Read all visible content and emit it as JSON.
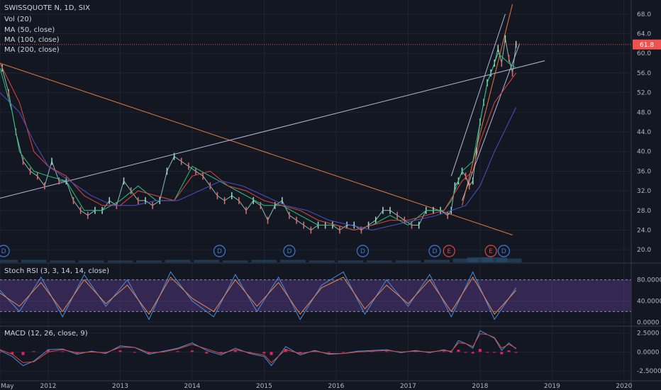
{
  "legend": {
    "title": "SWISSQUOTE N, 1D, SIX",
    "vol": "Vol (20)",
    "ma50": "MA (50, close)",
    "ma100": "MA (100, close)",
    "ma200": "MA (200, close)",
    "stoch": "Stoch RSI (3, 3, 14, 14, close)",
    "macd": "MACD (12, 26, close, 9)"
  },
  "colors": {
    "background": "#131722",
    "grid": "#1f2433",
    "candle_up": "#9fd8c7",
    "candle_down": "#e06d6d",
    "ma50": "#26c281",
    "ma100": "#e0463f",
    "ma200": "#4f4fc7",
    "trend_orange": "#e6783a",
    "trend_light": "#b0b8d8",
    "current_price": "#ef5350",
    "stoch_k": "#4a8fe0",
    "stoch_d": "#e9894a",
    "stoch_band": "#5d3f8f",
    "macd_line": "#4a8fe0",
    "signal_line": "#e0463f",
    "hist": "#e91e63"
  },
  "chart_data": [
    {
      "type": "line",
      "title": "SWISSQUOTE N, 1D, SIX",
      "ylim": [
        18,
        70
      ],
      "y_ticks": [
        "68.0",
        "64.0",
        "60.0",
        "56.0",
        "52.0",
        "48.0",
        "44.0",
        "40.0",
        "36.0",
        "32.0",
        "28.0",
        "24.0",
        "20.0"
      ],
      "x_tick_labels": [
        "May",
        "2012",
        "2013",
        "2014",
        "2015",
        "2016",
        "2017",
        "2018",
        "2019",
        "2020"
      ],
      "x_tick_years": [
        2011.33,
        2012.0,
        2013.0,
        2014.0,
        2015.0,
        2016.0,
        2017.0,
        2018.0,
        2019.0,
        2020.0
      ],
      "xlim": [
        2011.33,
        2020.1
      ],
      "current_price": "61.8",
      "current_price_value": 61.8,
      "series": [
        {
          "name": "MA (50, close)",
          "x": [
            2011.33,
            2011.5,
            2011.6,
            2011.8,
            2012.0,
            2012.25,
            2012.5,
            2012.75,
            2013.0,
            2013.25,
            2013.5,
            2013.75,
            2014.0,
            2014.25,
            2014.5,
            2014.75,
            2015.0,
            2015.25,
            2015.5,
            2015.75,
            2016.0,
            2016.25,
            2016.5,
            2016.75,
            2017.0,
            2017.25,
            2017.5,
            2017.6,
            2017.75,
            2017.9,
            2018.0,
            2018.1,
            2018.25,
            2018.4,
            2018.5
          ],
          "values": [
            57,
            48,
            40,
            36,
            35,
            34,
            28,
            28,
            30,
            33,
            30,
            30,
            37,
            35,
            33,
            31,
            29,
            29,
            27,
            25,
            25,
            24,
            25,
            27,
            25,
            28,
            28,
            30,
            36,
            38,
            46,
            54,
            60,
            58,
            57
          ]
        },
        {
          "name": "MA (100, close)",
          "x": [
            2011.33,
            2011.6,
            2011.8,
            2012.0,
            2012.25,
            2012.5,
            2012.75,
            2013.0,
            2013.25,
            2013.5,
            2013.75,
            2014.0,
            2014.25,
            2014.5,
            2014.75,
            2015.0,
            2015.25,
            2015.5,
            2015.75,
            2016.0,
            2016.25,
            2016.5,
            2016.75,
            2017.0,
            2017.25,
            2017.5,
            2017.75,
            2017.9,
            2018.0,
            2018.2,
            2018.4,
            2018.5
          ],
          "values": [
            58,
            50,
            40,
            37,
            35,
            31,
            29,
            29,
            32,
            31,
            30,
            35,
            36,
            33,
            32,
            30,
            29,
            28,
            26,
            25,
            24,
            25,
            26,
            26,
            27,
            28,
            34,
            36,
            42,
            50,
            54,
            56
          ]
        },
        {
          "name": "MA (200, close)",
          "x": [
            2011.33,
            2011.6,
            2011.8,
            2012.0,
            2012.3,
            2012.6,
            2012.9,
            2013.2,
            2013.5,
            2013.8,
            2014.1,
            2014.4,
            2014.7,
            2015.0,
            2015.3,
            2015.6,
            2015.9,
            2016.2,
            2016.5,
            2016.8,
            2017.1,
            2017.4,
            2017.6,
            2017.8,
            2018.0,
            2018.2,
            2018.4,
            2018.5
          ],
          "values": [
            52,
            48,
            42,
            37,
            34,
            31,
            29,
            29,
            30,
            30,
            32,
            34,
            33,
            31,
            29,
            28,
            26,
            25,
            24,
            25,
            26,
            27,
            28,
            29,
            33,
            40,
            46,
            49
          ]
        }
      ],
      "candles": {
        "x": [
          2011.36,
          2011.45,
          2011.55,
          2011.65,
          2011.75,
          2011.85,
          2011.95,
          2012.05,
          2012.15,
          2012.25,
          2012.35,
          2012.45,
          2012.55,
          2012.65,
          2012.75,
          2012.85,
          2012.95,
          2013.05,
          2013.15,
          2013.25,
          2013.35,
          2013.45,
          2013.55,
          2013.65,
          2013.75,
          2013.85,
          2013.95,
          2014.05,
          2014.15,
          2014.25,
          2014.35,
          2014.45,
          2014.55,
          2014.65,
          2014.75,
          2014.85,
          2014.95,
          2015.05,
          2015.15,
          2015.25,
          2015.35,
          2015.45,
          2015.55,
          2015.65,
          2015.75,
          2015.85,
          2015.95,
          2016.05,
          2016.15,
          2016.25,
          2016.35,
          2016.45,
          2016.55,
          2016.65,
          2016.75,
          2016.85,
          2016.95,
          2017.05,
          2017.15,
          2017.25,
          2017.35,
          2017.45,
          2017.55,
          2017.6,
          2017.65,
          2017.7,
          2017.75,
          2017.8,
          2017.85,
          2017.9,
          2017.95,
          2018.0,
          2018.05,
          2018.1,
          2018.15,
          2018.2,
          2018.25,
          2018.3,
          2018.35,
          2018.4,
          2018.45,
          2018.5
        ],
        "values": [
          57,
          52,
          44,
          38,
          36,
          35,
          33,
          38,
          34,
          34,
          30,
          28,
          27,
          28,
          28,
          30,
          29,
          34,
          32,
          30,
          30,
          29,
          30,
          36,
          39,
          38,
          37,
          36,
          35,
          33,
          31,
          30,
          31,
          30,
          28,
          30,
          29,
          26,
          29,
          30,
          27,
          26,
          25,
          24,
          25,
          25,
          25,
          24,
          25,
          25,
          24,
          25,
          26,
          28,
          28,
          27,
          26,
          25,
          25,
          28,
          28,
          28,
          27,
          28,
          33,
          34,
          36,
          35,
          33,
          34,
          40,
          46,
          50,
          54,
          56,
          58,
          61,
          58,
          63,
          59,
          56,
          61.8
        ]
      },
      "trendlines": [
        {
          "name": "descending-resistance",
          "x": [
            2011.33,
            2018.45
          ],
          "values": [
            58,
            23
          ]
        },
        {
          "name": "ascending-support",
          "x": [
            2011.33,
            2018.9
          ],
          "values": [
            30.5,
            58.5
          ]
        },
        {
          "name": "channel-1",
          "x": [
            2017.6,
            2018.35
          ],
          "values": [
            35,
            68
          ]
        },
        {
          "name": "channel-2",
          "x": [
            2017.75,
            2018.55
          ],
          "values": [
            30,
            62
          ]
        },
        {
          "name": "channel-3",
          "x": [
            2017.75,
            2018.45
          ],
          "values": [
            29,
            70
          ]
        }
      ],
      "markers": [
        {
          "label": "D",
          "x": 2011.38
        },
        {
          "label": "D",
          "x": 2014.38
        },
        {
          "label": "D",
          "x": 2015.35
        },
        {
          "label": "D",
          "x": 2016.37
        },
        {
          "label": "D",
          "x": 2017.37
        },
        {
          "label": "E",
          "x": 2017.57
        },
        {
          "label": "E",
          "x": 2018.15
        },
        {
          "label": "D",
          "x": 2018.33
        }
      ],
      "volume_ylim": [
        0,
        10
      ],
      "volume": {
        "x": [
          2011.4,
          2011.8,
          2012.2,
          2012.6,
          2013.0,
          2013.4,
          2013.8,
          2014.2,
          2014.6,
          2015.0,
          2015.4,
          2015.8,
          2016.2,
          2016.6,
          2017.0,
          2017.4,
          2017.8,
          2018.0,
          2018.2,
          2018.4
        ],
        "values": [
          2,
          2,
          1.5,
          1.5,
          1.5,
          1.5,
          2,
          2,
          1.5,
          2,
          2,
          1.5,
          1.5,
          1.5,
          1.5,
          2,
          3,
          4,
          4,
          3
        ]
      }
    },
    {
      "type": "line",
      "title": "Stoch RSI (3, 3, 14, 14, close)",
      "ylim": [
        -5,
        105
      ],
      "y_ticks": [
        "80.0000",
        "40.0000",
        "0.0000"
      ],
      "band": [
        20,
        80
      ],
      "series": [
        {
          "name": "K",
          "x": [
            2011.33,
            2011.6,
            2011.9,
            2012.2,
            2012.5,
            2012.8,
            2013.1,
            2013.4,
            2013.7,
            2014.0,
            2014.3,
            2014.6,
            2014.9,
            2015.2,
            2015.5,
            2015.8,
            2016.1,
            2016.4,
            2016.7,
            2017.0,
            2017.3,
            2017.6,
            2017.9,
            2018.2,
            2018.5
          ],
          "values": [
            60,
            20,
            85,
            10,
            90,
            30,
            80,
            5,
            95,
            40,
            10,
            90,
            20,
            85,
            5,
            70,
            95,
            15,
            80,
            30,
            90,
            10,
            95,
            5,
            65
          ]
        },
        {
          "name": "D",
          "x": [
            2011.33,
            2011.6,
            2011.9,
            2012.2,
            2012.5,
            2012.8,
            2013.1,
            2013.4,
            2013.7,
            2014.0,
            2014.3,
            2014.6,
            2014.9,
            2015.2,
            2015.5,
            2015.8,
            2016.1,
            2016.4,
            2016.7,
            2017.0,
            2017.3,
            2017.6,
            2017.9,
            2018.2,
            2018.5
          ],
          "values": [
            55,
            30,
            75,
            20,
            80,
            35,
            70,
            15,
            85,
            45,
            20,
            80,
            30,
            75,
            15,
            65,
            85,
            25,
            70,
            35,
            80,
            20,
            85,
            15,
            60
          ]
        }
      ]
    },
    {
      "type": "line",
      "title": "MACD (12, 26, close, 9)",
      "ylim": [
        -3.6,
        3.2
      ],
      "y_ticks": [
        "2.5000",
        "0.0000",
        "-2.5000"
      ],
      "series": [
        {
          "name": "MACD",
          "x": [
            2011.33,
            2011.5,
            2011.65,
            2011.8,
            2012.0,
            2012.2,
            2012.4,
            2012.6,
            2012.8,
            2013.0,
            2013.2,
            2013.4,
            2013.6,
            2013.8,
            2014.0,
            2014.2,
            2014.4,
            2014.6,
            2014.8,
            2015.0,
            2015.1,
            2015.3,
            2015.5,
            2015.7,
            2015.9,
            2016.1,
            2016.3,
            2016.5,
            2016.7,
            2016.9,
            2017.1,
            2017.3,
            2017.5,
            2017.6,
            2017.7,
            2017.8,
            2017.9,
            2018.0,
            2018.1,
            2018.2,
            2018.3,
            2018.4,
            2018.5
          ],
          "values": [
            0.2,
            -0.6,
            -1.8,
            -1.2,
            0.3,
            0.4,
            -0.3,
            0.1,
            -0.2,
            0.8,
            0.6,
            -0.3,
            0.1,
            0.5,
            1.2,
            0.2,
            -0.4,
            0.5,
            -0.2,
            -0.6,
            -1.8,
            0.7,
            -0.4,
            0.2,
            -0.3,
            -0.2,
            0.1,
            0.2,
            0.3,
            -0.1,
            0.2,
            -0.1,
            0.3,
            0.0,
            1.5,
            1.1,
            0.5,
            2.8,
            2.3,
            1.8,
            0.2,
            1.2,
            0.4
          ]
        },
        {
          "name": "Signal",
          "x": [
            2011.33,
            2011.5,
            2011.65,
            2011.8,
            2012.0,
            2012.2,
            2012.4,
            2012.6,
            2012.8,
            2013.0,
            2013.2,
            2013.4,
            2013.6,
            2013.8,
            2014.0,
            2014.2,
            2014.4,
            2014.6,
            2014.8,
            2015.0,
            2015.1,
            2015.3,
            2015.5,
            2015.7,
            2015.9,
            2016.1,
            2016.3,
            2016.5,
            2016.7,
            2016.9,
            2017.1,
            2017.3,
            2017.5,
            2017.6,
            2017.7,
            2017.8,
            2017.9,
            2018.0,
            2018.1,
            2018.2,
            2018.3,
            2018.4,
            2018.5
          ],
          "values": [
            0.3,
            -0.3,
            -1.4,
            -1.3,
            0.0,
            0.3,
            -0.1,
            0.0,
            -0.1,
            0.6,
            0.6,
            -0.1,
            0.0,
            0.4,
            1.0,
            0.4,
            -0.2,
            0.3,
            -0.1,
            -0.4,
            -1.4,
            0.3,
            -0.2,
            0.1,
            -0.2,
            -0.2,
            0.0,
            0.1,
            0.2,
            0.0,
            0.1,
            0.0,
            0.2,
            0.1,
            1.2,
            1.1,
            0.7,
            2.4,
            2.3,
            1.9,
            0.5,
            1.0,
            0.5
          ]
        }
      ]
    }
  ]
}
